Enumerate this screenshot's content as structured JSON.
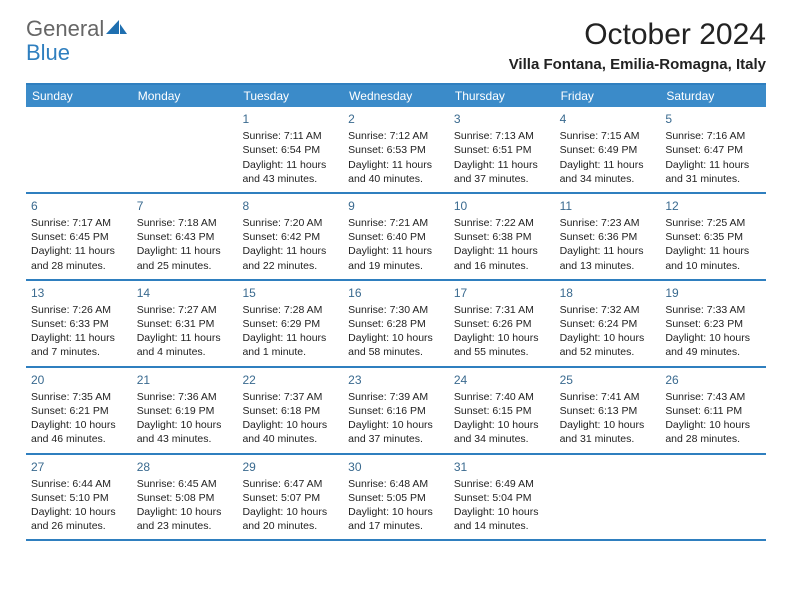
{
  "brand": {
    "word1": "General",
    "word2": "Blue"
  },
  "title": "October 2024",
  "location": "Villa Fontana, Emilia-Romagna, Italy",
  "colors": {
    "header_bg": "#3b8bc9",
    "border": "#2f7fbf",
    "day_number": "#3a6a8f"
  },
  "day_names": [
    "Sunday",
    "Monday",
    "Tuesday",
    "Wednesday",
    "Thursday",
    "Friday",
    "Saturday"
  ],
  "weeks": [
    [
      null,
      null,
      {
        "n": "1",
        "sr": "7:11 AM",
        "ss": "6:54 PM",
        "dl": "11 hours and 43 minutes."
      },
      {
        "n": "2",
        "sr": "7:12 AM",
        "ss": "6:53 PM",
        "dl": "11 hours and 40 minutes."
      },
      {
        "n": "3",
        "sr": "7:13 AM",
        "ss": "6:51 PM",
        "dl": "11 hours and 37 minutes."
      },
      {
        "n": "4",
        "sr": "7:15 AM",
        "ss": "6:49 PM",
        "dl": "11 hours and 34 minutes."
      },
      {
        "n": "5",
        "sr": "7:16 AM",
        "ss": "6:47 PM",
        "dl": "11 hours and 31 minutes."
      }
    ],
    [
      {
        "n": "6",
        "sr": "7:17 AM",
        "ss": "6:45 PM",
        "dl": "11 hours and 28 minutes."
      },
      {
        "n": "7",
        "sr": "7:18 AM",
        "ss": "6:43 PM",
        "dl": "11 hours and 25 minutes."
      },
      {
        "n": "8",
        "sr": "7:20 AM",
        "ss": "6:42 PM",
        "dl": "11 hours and 22 minutes."
      },
      {
        "n": "9",
        "sr": "7:21 AM",
        "ss": "6:40 PM",
        "dl": "11 hours and 19 minutes."
      },
      {
        "n": "10",
        "sr": "7:22 AM",
        "ss": "6:38 PM",
        "dl": "11 hours and 16 minutes."
      },
      {
        "n": "11",
        "sr": "7:23 AM",
        "ss": "6:36 PM",
        "dl": "11 hours and 13 minutes."
      },
      {
        "n": "12",
        "sr": "7:25 AM",
        "ss": "6:35 PM",
        "dl": "11 hours and 10 minutes."
      }
    ],
    [
      {
        "n": "13",
        "sr": "7:26 AM",
        "ss": "6:33 PM",
        "dl": "11 hours and 7 minutes."
      },
      {
        "n": "14",
        "sr": "7:27 AM",
        "ss": "6:31 PM",
        "dl": "11 hours and 4 minutes."
      },
      {
        "n": "15",
        "sr": "7:28 AM",
        "ss": "6:29 PM",
        "dl": "11 hours and 1 minute."
      },
      {
        "n": "16",
        "sr": "7:30 AM",
        "ss": "6:28 PM",
        "dl": "10 hours and 58 minutes."
      },
      {
        "n": "17",
        "sr": "7:31 AM",
        "ss": "6:26 PM",
        "dl": "10 hours and 55 minutes."
      },
      {
        "n": "18",
        "sr": "7:32 AM",
        "ss": "6:24 PM",
        "dl": "10 hours and 52 minutes."
      },
      {
        "n": "19",
        "sr": "7:33 AM",
        "ss": "6:23 PM",
        "dl": "10 hours and 49 minutes."
      }
    ],
    [
      {
        "n": "20",
        "sr": "7:35 AM",
        "ss": "6:21 PM",
        "dl": "10 hours and 46 minutes."
      },
      {
        "n": "21",
        "sr": "7:36 AM",
        "ss": "6:19 PM",
        "dl": "10 hours and 43 minutes."
      },
      {
        "n": "22",
        "sr": "7:37 AM",
        "ss": "6:18 PM",
        "dl": "10 hours and 40 minutes."
      },
      {
        "n": "23",
        "sr": "7:39 AM",
        "ss": "6:16 PM",
        "dl": "10 hours and 37 minutes."
      },
      {
        "n": "24",
        "sr": "7:40 AM",
        "ss": "6:15 PM",
        "dl": "10 hours and 34 minutes."
      },
      {
        "n": "25",
        "sr": "7:41 AM",
        "ss": "6:13 PM",
        "dl": "10 hours and 31 minutes."
      },
      {
        "n": "26",
        "sr": "7:43 AM",
        "ss": "6:11 PM",
        "dl": "10 hours and 28 minutes."
      }
    ],
    [
      {
        "n": "27",
        "sr": "6:44 AM",
        "ss": "5:10 PM",
        "dl": "10 hours and 26 minutes."
      },
      {
        "n": "28",
        "sr": "6:45 AM",
        "ss": "5:08 PM",
        "dl": "10 hours and 23 minutes."
      },
      {
        "n": "29",
        "sr": "6:47 AM",
        "ss": "5:07 PM",
        "dl": "10 hours and 20 minutes."
      },
      {
        "n": "30",
        "sr": "6:48 AM",
        "ss": "5:05 PM",
        "dl": "10 hours and 17 minutes."
      },
      {
        "n": "31",
        "sr": "6:49 AM",
        "ss": "5:04 PM",
        "dl": "10 hours and 14 minutes."
      },
      null,
      null
    ]
  ],
  "labels": {
    "sunrise": "Sunrise:",
    "sunset": "Sunset:",
    "daylight": "Daylight:"
  }
}
